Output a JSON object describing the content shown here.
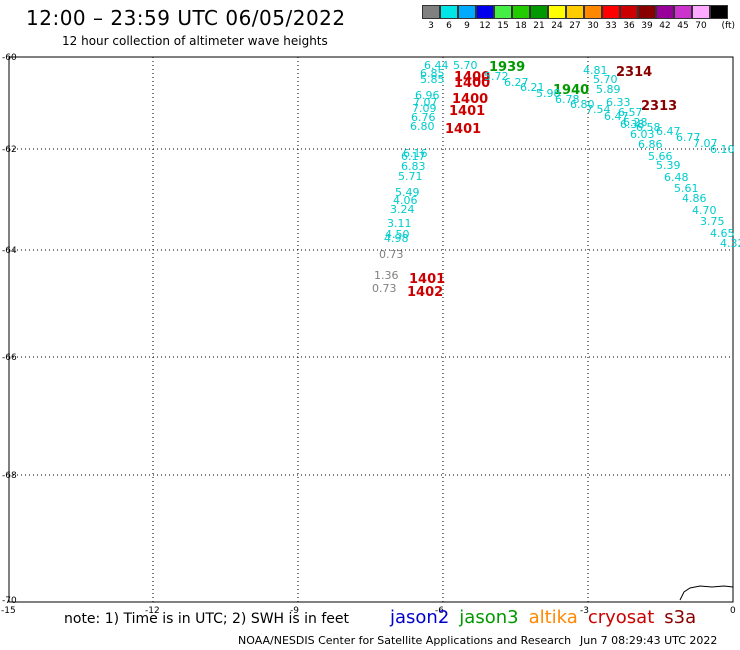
{
  "header": {
    "title": "12:00 – 23:59 UTC 06/05/2022",
    "subtitle": "12 hour collection of altimeter wave heights"
  },
  "colorbar": {
    "unit": "(ft)",
    "bins": [
      {
        "label": "3",
        "color": "#808080"
      },
      {
        "label": "6",
        "color": "#00e6e6"
      },
      {
        "label": "9",
        "color": "#00aaff"
      },
      {
        "label": "12",
        "color": "#0000ee"
      },
      {
        "label": "15",
        "color": "#44ee44"
      },
      {
        "label": "18",
        "color": "#22cc00"
      },
      {
        "label": "21",
        "color": "#009900"
      },
      {
        "label": "24",
        "color": "#ffff00"
      },
      {
        "label": "27",
        "color": "#ffcc00"
      },
      {
        "label": "30",
        "color": "#ff8800"
      },
      {
        "label": "33",
        "color": "#ff0000"
      },
      {
        "label": "36",
        "color": "#cc0000"
      },
      {
        "label": "39",
        "color": "#880000"
      },
      {
        "label": "42",
        "color": "#990099"
      },
      {
        "label": "45",
        "color": "#cc33cc"
      },
      {
        "label": "70",
        "color": "#ffaaff"
      },
      {
        "label": "",
        "color": "#000000"
      }
    ]
  },
  "axes": {
    "lon_labels": [
      "-15",
      "-12",
      "-9",
      "-6",
      "-3",
      "0"
    ],
    "lat_labels": [
      "-60",
      "-62",
      "-64",
      "-66",
      "-68",
      "-70"
    ]
  },
  "wave_labels": [
    {
      "text": "6.44",
      "color": "#00cccc"
    },
    {
      "text": "5.70",
      "color": "#00cccc"
    },
    {
      "text": "6.85",
      "color": "#00cccc"
    },
    {
      "text": "5.85",
      "color": "#00cccc"
    },
    {
      "text": "1939",
      "color": "#009900"
    },
    {
      "text": "1400",
      "color": "#cc0000"
    },
    {
      "text": "1400",
      "color": "#cc0000"
    },
    {
      "text": "5.72",
      "color": "#00cccc"
    },
    {
      "text": "6.27",
      "color": "#00cccc"
    },
    {
      "text": "6.21",
      "color": "#00cccc"
    },
    {
      "text": "1940",
      "color": "#009900"
    },
    {
      "text": "5.98",
      "color": "#00cccc"
    },
    {
      "text": "4.81",
      "color": "#00cccc"
    },
    {
      "text": "2314",
      "color": "#880000"
    },
    {
      "text": "5.70",
      "color": "#00cccc"
    },
    {
      "text": "5.89",
      "color": "#00cccc"
    },
    {
      "text": "6.78",
      "color": "#00cccc"
    },
    {
      "text": "6.80",
      "color": "#00cccc"
    },
    {
      "text": "7.54",
      "color": "#00cccc"
    },
    {
      "text": "6.33",
      "color": "#00cccc"
    },
    {
      "text": "6.57",
      "color": "#00cccc"
    },
    {
      "text": "6.47",
      "color": "#00cccc"
    },
    {
      "text": "2313",
      "color": "#880000"
    },
    {
      "text": "6.96",
      "color": "#00cccc"
    },
    {
      "text": "1400",
      "color": "#cc0000"
    },
    {
      "text": "7.07",
      "color": "#00cccc"
    },
    {
      "text": "7.09",
      "color": "#00cccc"
    },
    {
      "text": "1401",
      "color": "#cc0000"
    },
    {
      "text": "6.76",
      "color": "#00cccc"
    },
    {
      "text": "6.80",
      "color": "#00cccc"
    },
    {
      "text": "1401",
      "color": "#cc0000"
    },
    {
      "text": "6.28",
      "color": "#00cccc"
    },
    {
      "text": "6.38",
      "color": "#00cccc"
    },
    {
      "text": "6.58",
      "color": "#00cccc"
    },
    {
      "text": "6.47",
      "color": "#00cccc"
    },
    {
      "text": "6.03",
      "color": "#00cccc"
    },
    {
      "text": "6.77",
      "color": "#00cccc"
    },
    {
      "text": "6.86",
      "color": "#00cccc"
    },
    {
      "text": "7.07",
      "color": "#00cccc"
    },
    {
      "text": "6.10",
      "color": "#00cccc"
    },
    {
      "text": "6.16",
      "color": "#00cccc"
    },
    {
      "text": "6.17",
      "color": "#00cccc"
    },
    {
      "text": "5.66",
      "color": "#00cccc"
    },
    {
      "text": "6.83",
      "color": "#00cccc"
    },
    {
      "text": "5.39",
      "color": "#00cccc"
    },
    {
      "text": "5.71",
      "color": "#00cccc"
    },
    {
      "text": "6.48",
      "color": "#00cccc"
    },
    {
      "text": "5.61",
      "color": "#00cccc"
    },
    {
      "text": "5.49",
      "color": "#00cccc"
    },
    {
      "text": "4.86",
      "color": "#00cccc"
    },
    {
      "text": "4.06",
      "color": "#00cccc"
    },
    {
      "text": "3.24",
      "color": "#00cccc"
    },
    {
      "text": "4.70",
      "color": "#00cccc"
    },
    {
      "text": "3.75",
      "color": "#00cccc"
    },
    {
      "text": "3.11",
      "color": "#00cccc"
    },
    {
      "text": "4.65",
      "color": "#00cccc"
    },
    {
      "text": "4.50",
      "color": "#00cccc"
    },
    {
      "text": "4.32",
      "color": "#00cccc"
    },
    {
      "text": "4.98",
      "color": "#00cccc"
    },
    {
      "text": "0.73",
      "color": "#808080"
    },
    {
      "text": "1.36",
      "color": "#808080"
    },
    {
      "text": "1401",
      "color": "#cc0000"
    },
    {
      "text": "0.73",
      "color": "#808080"
    },
    {
      "text": "1402",
      "color": "#cc0000"
    }
  ],
  "footer": {
    "note": "note: 1) Time is in UTC; 2) SWH is in feet",
    "satellites": [
      {
        "name": "jason2",
        "color": "#0000cc"
      },
      {
        "name": "jason3",
        "color": "#009900"
      },
      {
        "name": "altika",
        "color": "#ff8800"
      },
      {
        "name": "cryosat",
        "color": "#cc0000"
      },
      {
        "name": "s3a",
        "color": "#880000"
      }
    ],
    "credit": "NOAA/NESDIS Center for Satellite Applications and Research",
    "generated": "Jun  7 08:29:43 UTC 2022"
  }
}
